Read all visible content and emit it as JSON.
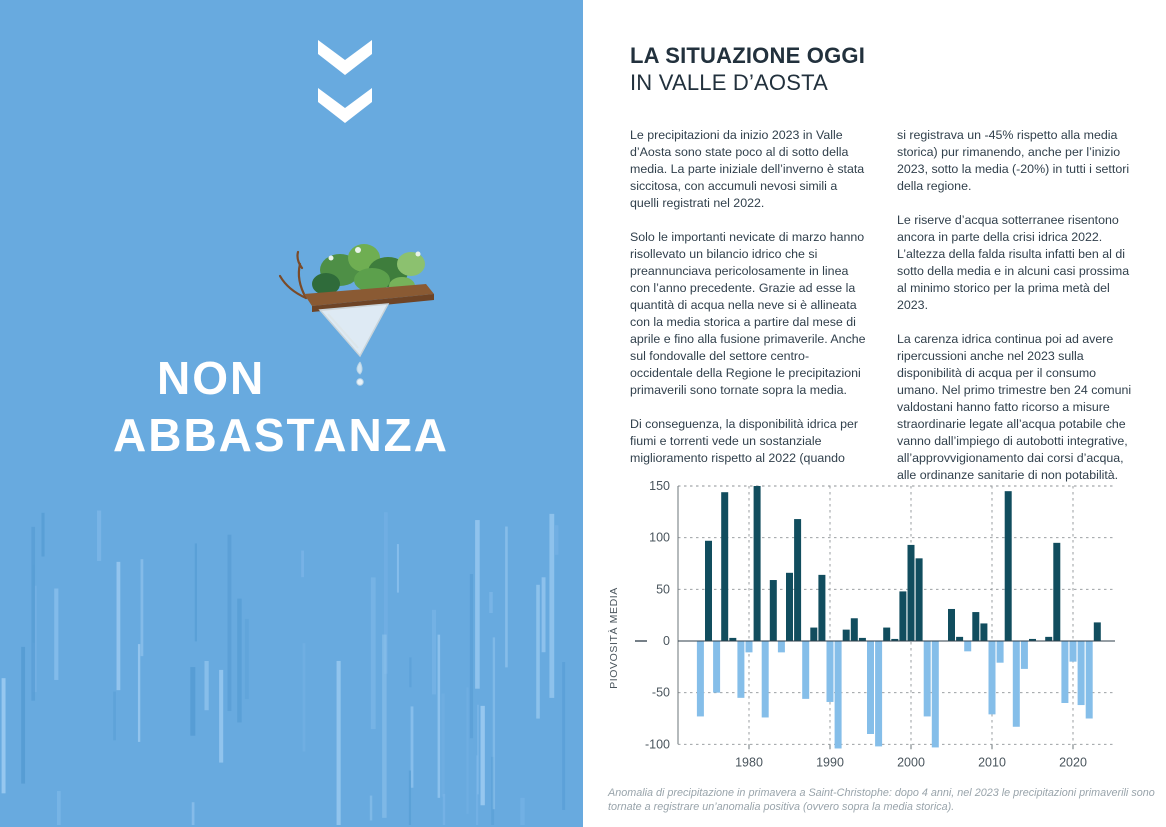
{
  "left_panel": {
    "headline_line1": "NON",
    "headline_line2": "ABBASTANZA"
  },
  "right_panel": {
    "title_line1": "LA SITUAZIONE OGGI",
    "title_line2": "IN VALLE D’AOSTA",
    "column1_paragraphs": [
      "Le precipitazioni da inizio 2023 in Valle d’Aosta sono state poco al di sotto della media. La parte iniziale dell’inverno è stata siccitosa, con accumuli nevosi simili a quelli registrati nel 2022.",
      "Solo le importanti nevicate di marzo hanno risollevato un bilancio idrico che si preannunciava pericolosamente in linea con l’anno precedente. Grazie ad esse la quantità di acqua nella neve si è allineata con la media storica a partire dal mese di aprile e fino alla fusione primaverile. Anche sul fondovalle del settore centro-occidentale della Regione le precipitazioni primaverili sono tornate sopra la media.",
      "Di conseguenza, la disponibilità idrica per fiumi e torrenti vede un sostanziale miglioramento rispetto al 2022 (quando"
    ],
    "column2_paragraphs": [
      "si registrava un -45% rispetto alla media storica) pur rimanendo, anche per l’inizio 2023, sotto la media (-20%) in tutti i settori della regione.",
      "Le riserve d’acqua sotterranee risentono ancora in parte della crisi idrica 2022. L’altezza della falda risulta infatti ben al di sotto della media e in alcuni casi prossima al minimo storico per la prima metà del 2023.",
      "La carenza idrica continua poi ad avere ripercussioni anche nel 2023 sulla disponibilità di acqua per il consumo umano. Nel primo trimestre ben 24 comuni valdostani hanno fatto ricorso a misure straordinarie legate all’acqua potabile che vanno dall’impiego di autobotti integrative, all’approvvigionamento dai corsi d’acqua, alle ordinanze sanitarie di non potabilità."
    ],
    "caption": "Anomalia di precipitazione in primavera a Saint-Christophe: dopo 4 anni, nel 2023 le precipitazioni primaverili sono tornate a registrare un’anomalia positiva (ovvero sopra la media storica)."
  },
  "chart_data": {
    "type": "bar",
    "title": "",
    "xlabel": "",
    "ylabel": "PIOVOSITÀ MEDIA",
    "x": [
      1974,
      1975,
      1976,
      1977,
      1978,
      1979,
      1980,
      1981,
      1982,
      1983,
      1984,
      1985,
      1986,
      1987,
      1988,
      1989,
      1990,
      1991,
      1992,
      1993,
      1994,
      1995,
      1996,
      1997,
      1998,
      1999,
      2000,
      2001,
      2002,
      2003,
      2004,
      2005,
      2006,
      2007,
      2008,
      2009,
      2010,
      2011,
      2012,
      2013,
      2014,
      2015,
      2016,
      2017,
      2018,
      2019,
      2020,
      2021,
      2022,
      2023
    ],
    "values": [
      -73,
      97,
      -50,
      144,
      3,
      -55,
      -11,
      150,
      -74,
      59,
      -11,
      66,
      118,
      -56,
      13,
      64,
      -59,
      -104,
      11,
      22,
      3,
      -90,
      -102,
      13,
      2,
      48,
      93,
      80,
      -73,
      -103,
      0,
      31,
      4,
      -10,
      28,
      17,
      -71,
      -21,
      145,
      -83,
      -27,
      2,
      0,
      4,
      95,
      -60,
      -20,
      -62,
      -75,
      18
    ],
    "yticks": [
      150,
      100,
      50,
      0,
      -50,
      -100
    ],
    "xticks": [
      1980,
      1990,
      2000,
      2010,
      2020
    ],
    "ylim": [
      -115,
      160
    ],
    "grid": "dashed",
    "legend": "none",
    "positive_color": "#114d5e",
    "negative_color": "#85bee9"
  },
  "icons": {
    "double_chevron_down": "chevron-down-icon",
    "illustration": "dripping-terrarium-illustration"
  },
  "colors": {
    "panel_blue": "#68aadf",
    "headline_white": "#ffffff",
    "title_dark": "#22313d",
    "body_text": "#31404c",
    "caption_gray": "#99a4ab",
    "bar_positive": "#114d5e",
    "bar_negative": "#85bee9"
  }
}
